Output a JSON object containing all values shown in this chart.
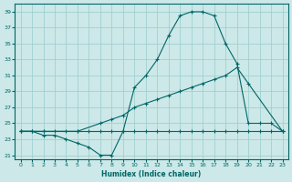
{
  "xlabel": "Humidex (Indice chaleur)",
  "bg_color": "#cce8e8",
  "grid_color": "#99cccc",
  "line_color": "#006666",
  "xlim": [
    -0.5,
    23.5
  ],
  "ylim": [
    20.5,
    40.0
  ],
  "xticks": [
    0,
    1,
    2,
    3,
    4,
    5,
    6,
    7,
    8,
    9,
    10,
    11,
    12,
    13,
    14,
    15,
    16,
    17,
    18,
    19,
    20,
    21,
    22,
    23
  ],
  "yticks": [
    21,
    23,
    25,
    27,
    29,
    31,
    33,
    35,
    37,
    39
  ],
  "line1": {
    "x": [
      0,
      1,
      2,
      3,
      4,
      5,
      6,
      7,
      8,
      9,
      10,
      11,
      12,
      13,
      14,
      15,
      16,
      17,
      18,
      19,
      20,
      21,
      22,
      23
    ],
    "y": [
      24,
      24,
      24,
      24,
      24,
      24,
      24,
      24,
      24,
      24,
      24,
      24,
      24,
      24,
      24,
      24,
      24,
      24,
      24,
      24,
      24,
      24,
      24,
      24
    ]
  },
  "line2": {
    "x": [
      0,
      2,
      5,
      7,
      8,
      9,
      10,
      11,
      12,
      13,
      14,
      15,
      16,
      17,
      18,
      19,
      20,
      23
    ],
    "y": [
      24,
      24,
      24,
      25,
      25.5,
      26,
      27,
      27.5,
      28,
      28.5,
      29,
      29.5,
      30,
      30.5,
      31,
      32,
      30,
      24
    ]
  },
  "line3": {
    "x": [
      0,
      1,
      2,
      3,
      4,
      5,
      6,
      7,
      8,
      9,
      10,
      11,
      12,
      13,
      14,
      15,
      16,
      17,
      18,
      19,
      20,
      21,
      22,
      23
    ],
    "y": [
      24,
      24,
      23.5,
      23.5,
      23,
      22.5,
      22,
      21,
      21,
      24,
      29.5,
      31,
      33,
      36,
      38.5,
      39,
      39,
      38.5,
      35,
      32.5,
      25,
      25,
      25,
      24
    ]
  }
}
